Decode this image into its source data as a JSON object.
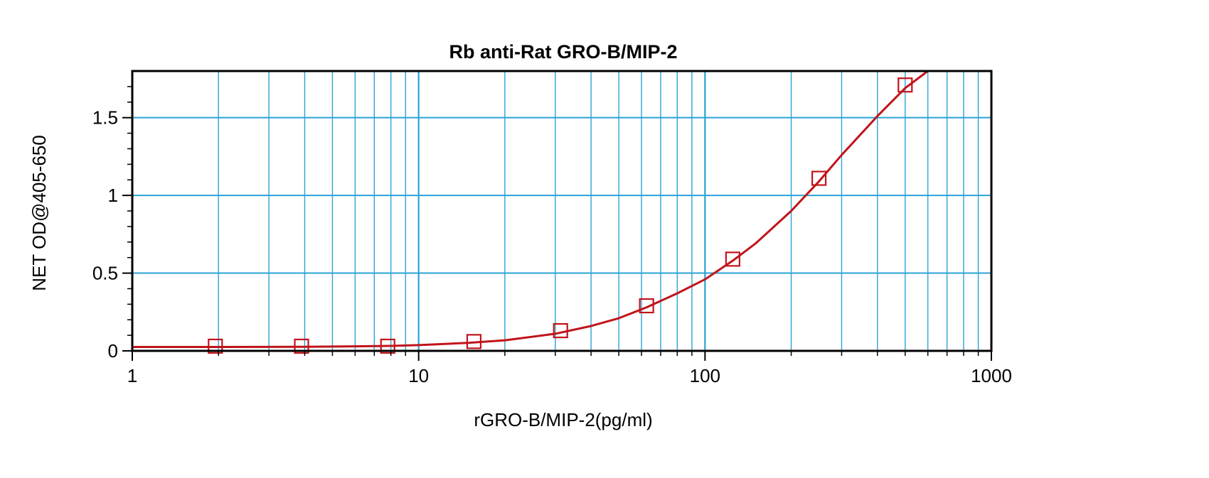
{
  "chart_data": {
    "type": "scatter",
    "title": "Rb anti-Rat GRO-B/MIP-2",
    "xlabel": "rGRO-B/MIP-2(pg/ml)",
    "ylabel": "NET OD@405-650",
    "x_scale": "log",
    "xlim": [
      1,
      1000
    ],
    "ylim": [
      0,
      1.8
    ],
    "x_ticks": [
      {
        "value": 1,
        "label": "1"
      },
      {
        "value": 10,
        "label": "10"
      },
      {
        "value": 100,
        "label": "100"
      },
      {
        "value": 1000,
        "label": "1000"
      }
    ],
    "y_ticks": [
      {
        "value": 0,
        "label": "0"
      },
      {
        "value": 0.5,
        "label": "0.5"
      },
      {
        "value": 1,
        "label": "1"
      },
      {
        "value": 1.5,
        "label": "1.5"
      }
    ],
    "grid": true,
    "series": [
      {
        "marker": "open-square",
        "points": [
          {
            "x": 1.95,
            "y": 0.03
          },
          {
            "x": 3.9,
            "y": 0.03
          },
          {
            "x": 7.8,
            "y": 0.03
          },
          {
            "x": 15.6,
            "y": 0.06
          },
          {
            "x": 31.3,
            "y": 0.13
          },
          {
            "x": 62.5,
            "y": 0.29
          },
          {
            "x": 125,
            "y": 0.59
          },
          {
            "x": 250,
            "y": 1.11
          },
          {
            "x": 500,
            "y": 1.71
          }
        ]
      }
    ],
    "fit_curve": {
      "points": [
        {
          "x": 1,
          "y": 0.025
        },
        {
          "x": 2,
          "y": 0.025
        },
        {
          "x": 4,
          "y": 0.026
        },
        {
          "x": 6,
          "y": 0.029
        },
        {
          "x": 8,
          "y": 0.032
        },
        {
          "x": 10,
          "y": 0.037
        },
        {
          "x": 15,
          "y": 0.052
        },
        {
          "x": 20,
          "y": 0.068
        },
        {
          "x": 30,
          "y": 0.11
        },
        {
          "x": 40,
          "y": 0.16
        },
        {
          "x": 50,
          "y": 0.21
        },
        {
          "x": 62.5,
          "y": 0.28
        },
        {
          "x": 80,
          "y": 0.37
        },
        {
          "x": 100,
          "y": 0.46
        },
        {
          "x": 125,
          "y": 0.58
        },
        {
          "x": 150,
          "y": 0.69
        },
        {
          "x": 200,
          "y": 0.9
        },
        {
          "x": 250,
          "y": 1.09
        },
        {
          "x": 300,
          "y": 1.26
        },
        {
          "x": 400,
          "y": 1.51
        },
        {
          "x": 500,
          "y": 1.69
        },
        {
          "x": 600,
          "y": 1.8
        }
      ]
    },
    "colors": {
      "grid": "#2aa3d4",
      "series": "#c0141b",
      "axes": "#000000"
    }
  }
}
